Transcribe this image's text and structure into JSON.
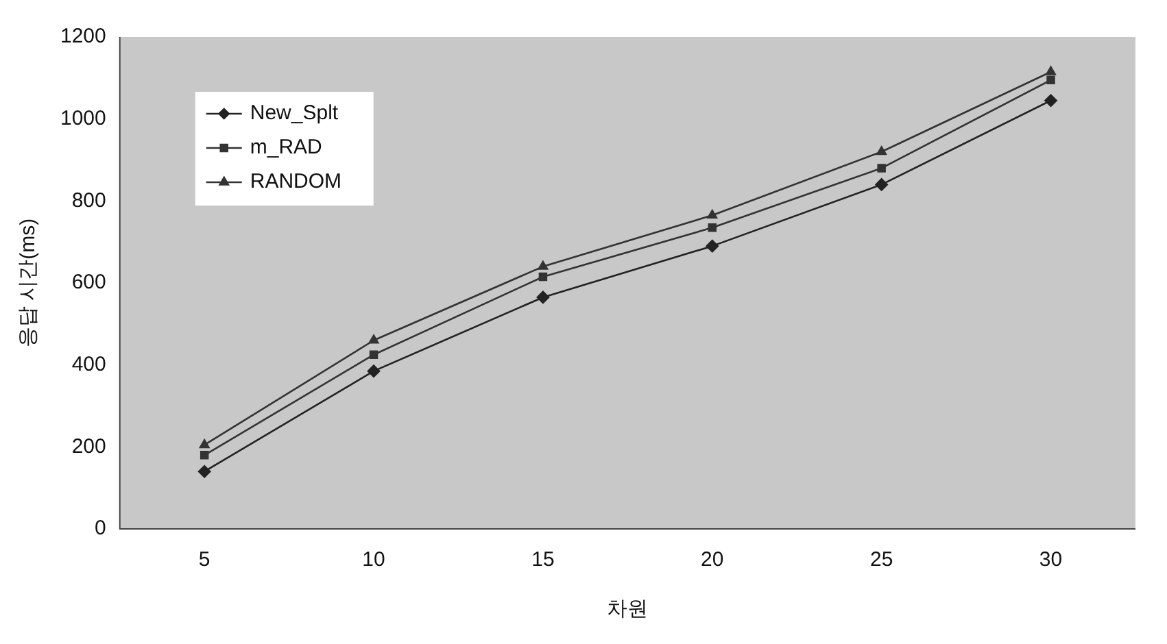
{
  "chart_data": {
    "type": "line",
    "xlabel": "차원",
    "ylabel": "응답 시간(ms)",
    "categories": [
      "5",
      "10",
      "15",
      "20",
      "25",
      "30"
    ],
    "series": [
      {
        "name": "New_Splt",
        "color": "#222222",
        "marker": "diamond",
        "values": [
          140,
          385,
          565,
          690,
          840,
          1045
        ]
      },
      {
        "name": "m_RAD",
        "color": "#333333",
        "marker": "square",
        "values": [
          180,
          425,
          615,
          735,
          880,
          1095
        ]
      },
      {
        "name": "RANDOM",
        "color": "#333333",
        "marker": "triangle",
        "values": [
          205,
          460,
          640,
          765,
          920,
          1115
        ]
      }
    ],
    "ylim": [
      0,
      1200
    ],
    "yticks": [
      0,
      200,
      400,
      600,
      800,
      1000,
      1200
    ],
    "grid": false,
    "legend": "top left"
  }
}
